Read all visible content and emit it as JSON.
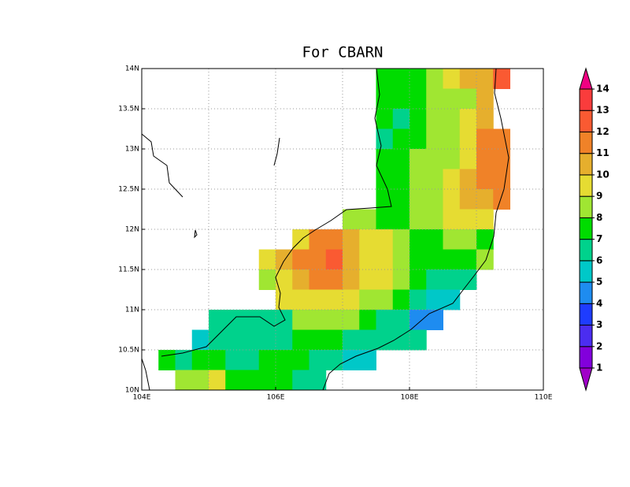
{
  "chart_data": {
    "type": "gridmap",
    "title": "For CBARN",
    "xlim": [
      104,
      110
    ],
    "ylim": [
      10,
      14
    ],
    "xticks": [
      {
        "value": 104,
        "label": "104E"
      },
      {
        "value": 106,
        "label": "106E"
      },
      {
        "value": 108,
        "label": "108E"
      },
      {
        "value": 110,
        "label": "110E"
      }
    ],
    "xgrid": [
      105,
      106,
      107,
      108,
      109
    ],
    "yticks": [
      {
        "value": 10,
        "label": "10N"
      },
      {
        "value": 10.5,
        "label": "10.5N"
      },
      {
        "value": 11,
        "label": "11N"
      },
      {
        "value": 11.5,
        "label": "11.5N"
      },
      {
        "value": 12,
        "label": "12N"
      },
      {
        "value": 12.5,
        "label": "12.5N"
      },
      {
        "value": 13,
        "label": "13N"
      },
      {
        "value": 13.5,
        "label": "13.5N"
      },
      {
        "value": 14,
        "label": "14N"
      }
    ],
    "grid": true,
    "cell": 0.25,
    "rows": [
      {
        "lat": 13.75,
        "lon_start": 107.5,
        "values": [
          7,
          7,
          7,
          8,
          9,
          10,
          10,
          12
        ]
      },
      {
        "lat": 13.5,
        "lon_start": 107.5,
        "values": [
          7,
          7,
          7,
          8,
          8,
          8,
          10
        ]
      },
      {
        "lat": 13.25,
        "lon_start": 107.5,
        "values": [
          7,
          6,
          7,
          8,
          8,
          9,
          10
        ]
      },
      {
        "lat": 13.0,
        "lon_start": 107.5,
        "values": [
          6,
          7,
          7,
          8,
          8,
          9,
          11,
          11
        ]
      },
      {
        "lat": 12.75,
        "lon_start": 107.5,
        "values": [
          7,
          7,
          8,
          8,
          8,
          9,
          11,
          11
        ]
      },
      {
        "lat": 12.5,
        "lon_start": 107.5,
        "values": [
          7,
          7,
          8,
          8,
          9,
          10,
          11,
          11
        ]
      },
      {
        "lat": 12.25,
        "lon_start": 107.5,
        "values": [
          7,
          7,
          8,
          8,
          9,
          10,
          10,
          11
        ]
      },
      {
        "lat": 12.0,
        "lon_start": 107.0,
        "values": [
          8,
          8,
          7,
          7,
          8,
          8,
          9,
          9,
          9
        ]
      },
      {
        "lat": 11.75,
        "lon_start": 106.25,
        "values": [
          9,
          11,
          11,
          10,
          9,
          9,
          8,
          7,
          7,
          8,
          8,
          7
        ]
      },
      {
        "lat": 11.5,
        "lon_start": 105.75,
        "values": [
          9,
          10,
          11,
          11,
          12,
          10,
          9,
          9,
          8,
          7,
          7,
          7,
          7,
          8
        ]
      },
      {
        "lat": 11.25,
        "lon_start": 105.75,
        "values": [
          8,
          9,
          10,
          11,
          11,
          10,
          9,
          9,
          8,
          7,
          6,
          6,
          6
        ]
      },
      {
        "lat": 11.0,
        "lon_start": 106.0,
        "values": [
          9,
          9,
          9,
          9,
          9,
          8,
          8,
          7,
          6,
          5,
          5
        ]
      },
      {
        "lat": 10.75,
        "lon_start": 105.0,
        "values": [
          6,
          6,
          6,
          6,
          6,
          8,
          8,
          8,
          8,
          7,
          6,
          6,
          4,
          4
        ]
      },
      {
        "lat": 10.5,
        "lon_start": 104.75,
        "values": [
          5,
          6,
          6,
          6,
          6,
          6,
          7,
          7,
          7,
          6,
          6,
          6,
          6,
          6
        ]
      },
      {
        "lat": 10.25,
        "lon_start": 104.25,
        "values": [
          7,
          6,
          7,
          7,
          6,
          6,
          7,
          7,
          7,
          6,
          6,
          5,
          5
        ]
      },
      {
        "lat": 10.0,
        "lon_start": 104.5,
        "values": [
          8,
          8,
          9,
          7,
          7,
          7,
          7,
          6,
          6
        ]
      }
    ],
    "colorbar": {
      "levels": [
        1,
        2,
        3,
        4,
        5,
        6,
        7,
        8,
        9,
        10,
        11,
        12,
        13,
        14
      ],
      "colors": [
        "#a000c8",
        "#8200dc",
        "#4b2df0",
        "#1e3cff",
        "#1e8cf0",
        "#00c8c8",
        "#00d28c",
        "#00dc00",
        "#a0e632",
        "#e6dc32",
        "#e6af2d",
        "#f08228",
        "#fa5a32",
        "#fa3c3c",
        "#f00082"
      ]
    }
  }
}
